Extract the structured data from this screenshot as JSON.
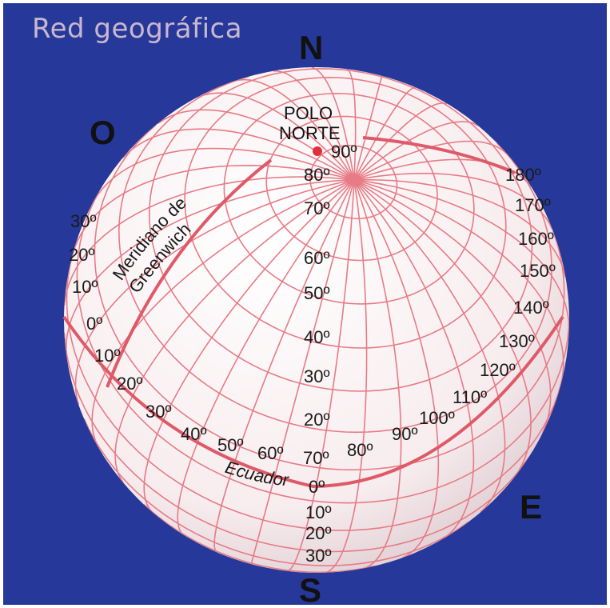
{
  "title": "Red geográfica",
  "directions": {
    "north": "N",
    "south": "S",
    "west": "O",
    "east": "E"
  },
  "pole": {
    "line1": "POLO",
    "line2": "NORTE"
  },
  "greenwich": {
    "line1": "Meridiano de",
    "line2": "Greenwich"
  },
  "equator_label": "Ecuador",
  "central_latitudes": [
    "90º",
    "80º",
    "70º",
    "60º",
    "50º",
    "40º",
    "30º",
    "20º",
    "0º",
    "10º",
    "20º",
    "30º"
  ],
  "left_latitudes": [
    "30º",
    "20º",
    "10º",
    "0º",
    "10º",
    "20º",
    "30º",
    "40º",
    "50º",
    "60º",
    "70º"
  ],
  "equator_longitudes": [
    "80º",
    "90º",
    "100º",
    "110º",
    "120º",
    "130º",
    "140º"
  ],
  "right_longitudes": [
    "150º",
    "160º",
    "170º",
    "180º"
  ],
  "colors": {
    "background": "#26399a",
    "grid": "#e0606c",
    "globe": "#fbf4f5",
    "text": "#111111"
  }
}
